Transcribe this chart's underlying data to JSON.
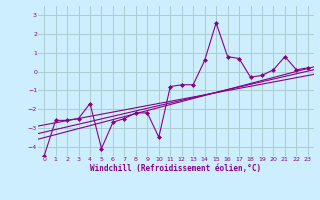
{
  "title": "",
  "xlabel": "Windchill (Refroidissement éolien,°C)",
  "ylabel": "",
  "background_color": "#cceeff",
  "grid_color": "#aacccc",
  "line_color": "#880088",
  "xlim": [
    -0.5,
    23.5
  ],
  "ylim": [
    -4.5,
    3.5
  ],
  "xticks": [
    0,
    1,
    2,
    3,
    4,
    5,
    6,
    7,
    8,
    9,
    10,
    11,
    12,
    13,
    14,
    15,
    16,
    17,
    18,
    19,
    20,
    21,
    22,
    23
  ],
  "yticks": [
    -4,
    -3,
    -2,
    -1,
    0,
    1,
    2,
    3
  ],
  "main_data_x": [
    0,
    1,
    2,
    3,
    4,
    5,
    6,
    7,
    8,
    9,
    10,
    11,
    12,
    13,
    14,
    15,
    16,
    17,
    18,
    19,
    20,
    21,
    22,
    23
  ],
  "main_data_y": [
    -4.5,
    -2.6,
    -2.6,
    -2.5,
    -1.7,
    -4.1,
    -2.7,
    -2.5,
    -2.2,
    -2.2,
    -3.5,
    -0.8,
    -0.7,
    -0.7,
    0.6,
    2.6,
    0.8,
    0.7,
    -0.3,
    -0.2,
    0.1,
    0.8,
    0.1,
    0.2
  ],
  "reg_starts": [
    -3.6,
    -3.3,
    -2.9
  ],
  "reg_ends": [
    0.25,
    0.1,
    -0.15
  ]
}
